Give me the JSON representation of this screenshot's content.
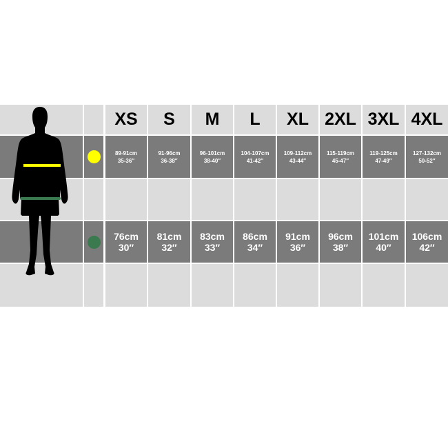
{
  "sizes": [
    "XS",
    "S",
    "M",
    "L",
    "XL",
    "2XL",
    "3XL",
    "4XL"
  ],
  "chest": {
    "icon": "yellow-circle",
    "color": "#ffff00",
    "values": [
      {
        "cm": "89-91cm",
        "in": "35-36″"
      },
      {
        "cm": "91-96cm",
        "in": "36-38″"
      },
      {
        "cm": "96-101cm",
        "in": "38-40″"
      },
      {
        "cm": "104-107cm",
        "in": "41-42″"
      },
      {
        "cm": "109-112cm",
        "in": "43-44″"
      },
      {
        "cm": "115-119cm",
        "in": "45-47″"
      },
      {
        "cm": "119-125cm",
        "in": "47-49″"
      },
      {
        "cm": "127-132cm",
        "in": "50-52″"
      }
    ]
  },
  "waist": {
    "icon": "green-circle",
    "color": "#3a7a4e",
    "values": [
      {
        "cm": "76cm",
        "in": "30″"
      },
      {
        "cm": "81cm",
        "in": "32″"
      },
      {
        "cm": "83cm",
        "in": "33″"
      },
      {
        "cm": "86cm",
        "in": "34″"
      },
      {
        "cm": "91cm",
        "in": "36″"
      },
      {
        "cm": "96cm",
        "in": "38″"
      },
      {
        "cm": "101cm",
        "in": "40″"
      },
      {
        "cm": "106cm",
        "in": "42″"
      }
    ]
  },
  "colors": {
    "light": "#dcdcdc",
    "dark": "#7b7b7b"
  }
}
